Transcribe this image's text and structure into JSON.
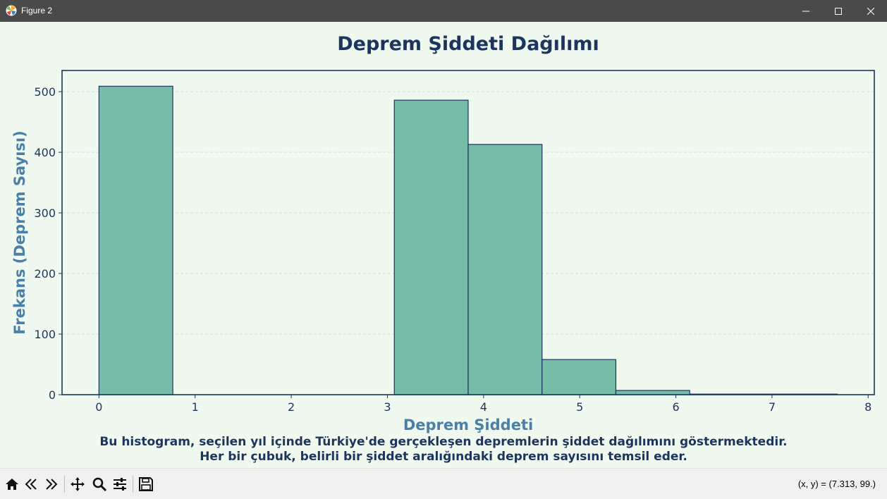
{
  "window": {
    "title": "Figure 2"
  },
  "chart_data": {
    "type": "bar",
    "title": "Deprem Şiddeti Dağılımı",
    "xlabel": "Deprem Şiddeti",
    "ylabel": "Frekans (Deprem Sayısı)",
    "bins": [
      {
        "x0": 0.0,
        "x1": 0.768,
        "value": 509
      },
      {
        "x0": 0.768,
        "x1": 1.536,
        "value": 0
      },
      {
        "x0": 1.536,
        "x1": 2.304,
        "value": 0
      },
      {
        "x0": 2.304,
        "x1": 3.072,
        "value": 0
      },
      {
        "x0": 3.072,
        "x1": 3.84,
        "value": 486
      },
      {
        "x0": 3.84,
        "x1": 4.608,
        "value": 413
      },
      {
        "x0": 4.608,
        "x1": 5.376,
        "value": 58
      },
      {
        "x0": 5.376,
        "x1": 6.144,
        "value": 7
      },
      {
        "x0": 6.144,
        "x1": 6.912,
        "value": 1
      },
      {
        "x0": 6.912,
        "x1": 7.68,
        "value": 1
      }
    ],
    "xticks": [
      "0",
      "1",
      "2",
      "3",
      "4",
      "5",
      "6",
      "7",
      "8"
    ],
    "yticks": [
      "0",
      "100",
      "200",
      "300",
      "400",
      "500"
    ],
    "xlim": [
      -0.384,
      8.064
    ],
    "ylim": [
      0,
      535
    ],
    "grid": "y-dashed",
    "bar_color": "#77bba9",
    "edge_color": "#1c355e"
  },
  "caption": {
    "line1": "Bu histogram, seçilen yıl içinde Türkiye'de gerçekleşen depremlerin şiddet dağılımını göstermektedir.",
    "line2": "Her bir çubuk, belirli bir şiddet aralığındaki deprem sayısını temsil eder."
  },
  "status": {
    "coords": "(x, y) = (7.313, 99.)"
  },
  "colors": {
    "title": "#1c355e",
    "axis_label": "#4a7fa8",
    "background": "#f0f9ef"
  }
}
